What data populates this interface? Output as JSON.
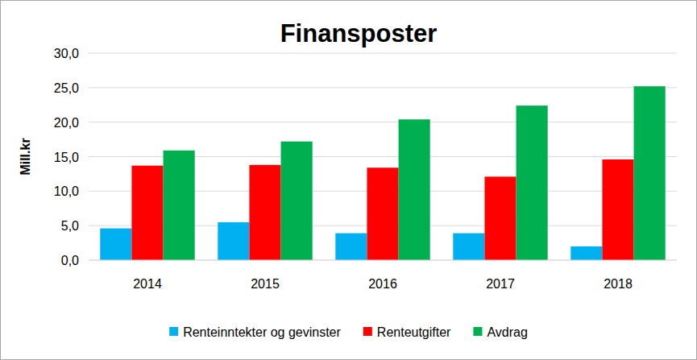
{
  "chart_data": {
    "type": "bar",
    "title": "Finansposter",
    "y_label": "Mill.kr",
    "categories": [
      "2014",
      "2015",
      "2016",
      "2017",
      "2018"
    ],
    "series": [
      {
        "name": "Renteinntekter og gevinster",
        "color": "#00b0f0",
        "values": [
          4.6,
          5.5,
          3.9,
          3.9,
          2.0
        ]
      },
      {
        "name": "Renteutgifter",
        "color": "#ff0000",
        "values": [
          13.7,
          13.8,
          13.4,
          12.1,
          14.6
        ]
      },
      {
        "name": "Avdrag",
        "color": "#00b050",
        "values": [
          15.9,
          17.2,
          20.4,
          22.4,
          25.2
        ]
      }
    ],
    "ylim": [
      0,
      30
    ],
    "yticks": [
      {
        "value": 0,
        "label": "0,0"
      },
      {
        "value": 5,
        "label": "5,0"
      },
      {
        "value": 10,
        "label": "10,0"
      },
      {
        "value": 15,
        "label": "15,0"
      },
      {
        "value": 20,
        "label": "20,0"
      },
      {
        "value": 25,
        "label": "25,0"
      },
      {
        "value": 30,
        "label": "30,0"
      }
    ],
    "grid": true,
    "legend": "bottom"
  }
}
